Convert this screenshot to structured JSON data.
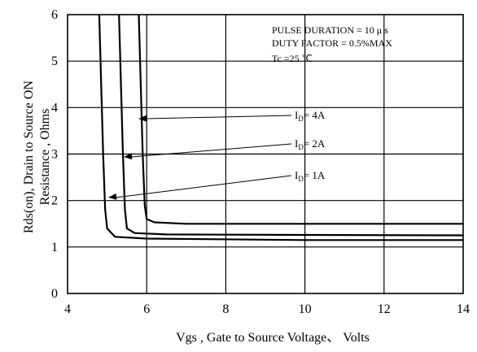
{
  "chart_data": {
    "type": "line",
    "xlabel": "Vgs , Gate to Source Voltage、 Volts",
    "ylabel_line1": "Rds(on), Drain to Source ON",
    "ylabel_line2": "Resistance , Ohms",
    "xlim": [
      4,
      14
    ],
    "ylim": [
      0,
      6
    ],
    "x_ticks": [
      "4",
      "6",
      "8",
      "10",
      "12",
      "14"
    ],
    "y_ticks": [
      "0",
      "1",
      "2",
      "3",
      "4",
      "5",
      "6"
    ],
    "grid": true,
    "annotations": [
      "PULSE   DURATION = 10 μ s",
      "DUTY   FACTOR = 0.5%MAX",
      "Tc =25  ℃"
    ],
    "series": [
      {
        "name": "ID= 4A",
        "label_main": "I",
        "label_sub": "D",
        "label_rest": "= 4A",
        "x": [
          5.8,
          5.85,
          5.9,
          5.95,
          6.0,
          6.2,
          7.0,
          10.0,
          14.0
        ],
        "y": [
          6.0,
          4.5,
          3.0,
          1.9,
          1.6,
          1.53,
          1.5,
          1.5,
          1.5
        ]
      },
      {
        "name": "ID= 2A",
        "label_main": "I",
        "label_sub": "D",
        "label_rest": "= 2A",
        "x": [
          5.3,
          5.35,
          5.4,
          5.45,
          5.5,
          5.7,
          6.5,
          10.0,
          14.0
        ],
        "y": [
          6.0,
          4.5,
          3.0,
          1.8,
          1.4,
          1.3,
          1.27,
          1.26,
          1.25
        ]
      },
      {
        "name": "ID= 1A",
        "label_main": "I",
        "label_sub": "D",
        "label_rest": "= 1A",
        "x": [
          4.8,
          4.85,
          4.9,
          4.95,
          5.0,
          5.2,
          6.0,
          10.0,
          14.0
        ],
        "y": [
          6.0,
          4.5,
          3.0,
          1.8,
          1.4,
          1.22,
          1.18,
          1.15,
          1.15
        ]
      }
    ]
  }
}
